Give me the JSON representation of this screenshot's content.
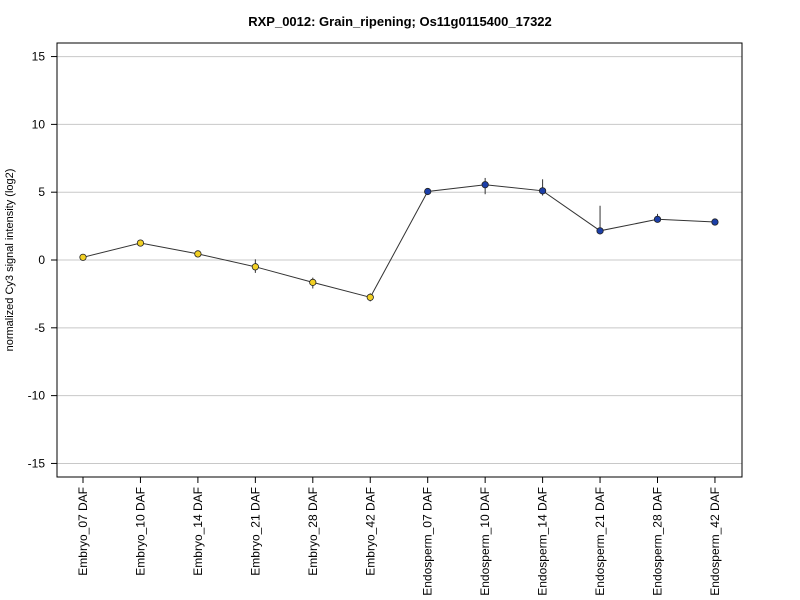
{
  "chart_data": {
    "type": "line",
    "title": "RXP_0012: Grain_ripening; Os11g0115400_17322",
    "xlabel": "",
    "ylabel": "normalized Cy3 signal intensity (log2)",
    "ylim": [
      -16,
      16
    ],
    "yticks": [
      -15,
      -10,
      -5,
      0,
      5,
      10,
      15
    ],
    "grid": "horizontal",
    "categories": [
      "Embryo_07 DAF",
      "Embryo_10 DAF",
      "Embryo_14 DAF",
      "Embryo_21 DAF",
      "Embryo_28 DAF",
      "Embryo_42 DAF",
      "Endosperm_07 DAF",
      "Endosperm_10 DAF",
      "Endosperm_14 DAF",
      "Endosperm_21 DAF",
      "Endosperm_28 DAF",
      "Endosperm_42 DAF"
    ],
    "values": [
      0.2,
      1.25,
      0.45,
      -0.5,
      -1.65,
      -2.75,
      5.05,
      5.55,
      5.1,
      2.15,
      3.0,
      2.8
    ],
    "error_low": [
      0.1,
      0.1,
      0.15,
      0.45,
      0.45,
      0.3,
      0.2,
      0.7,
      0.35,
      0.15,
      0.1,
      0.1
    ],
    "error_high": [
      0.1,
      0.1,
      0.15,
      0.55,
      0.35,
      0.3,
      0.2,
      0.5,
      0.85,
      1.85,
      0.4,
      0.1
    ],
    "point_colors": [
      "#f2d024",
      "#f2d024",
      "#f2d024",
      "#f2d024",
      "#f2d024",
      "#f2d024",
      "#1c3fa8",
      "#1c3fa8",
      "#1c3fa8",
      "#1c3fa8",
      "#1c3fa8",
      "#1c3fa8"
    ],
    "line_color": "#333333",
    "grid_color": "#c8c8c8"
  }
}
